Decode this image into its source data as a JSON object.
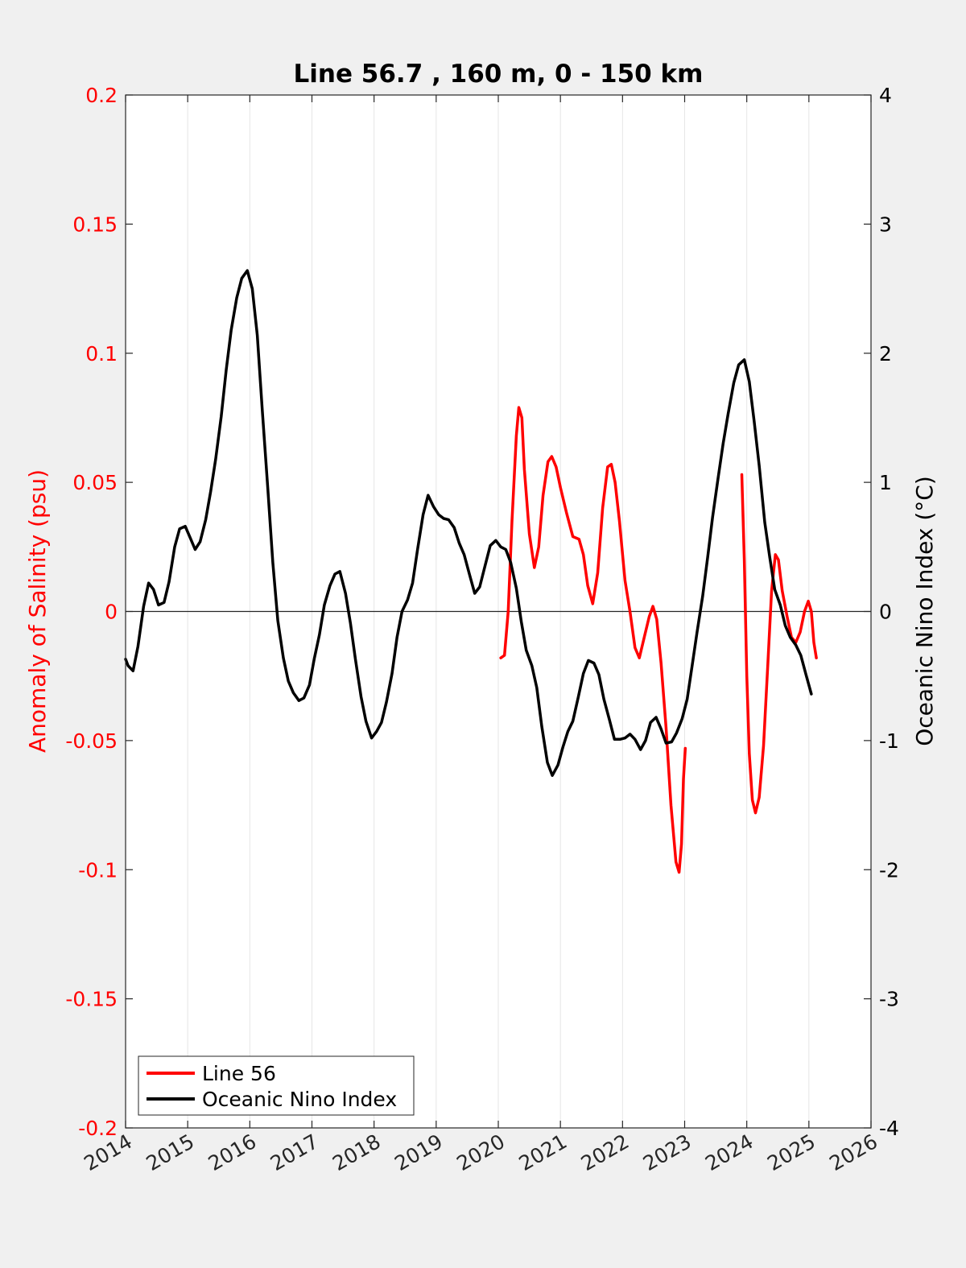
{
  "chart_data": {
    "type": "line",
    "title": "Line 56.7 , 160 m, 0 - 150 km",
    "xlim": [
      2014,
      2026
    ],
    "x_ticks": [
      "2014",
      "2015",
      "2016",
      "2017",
      "2018",
      "2019",
      "2020",
      "2021",
      "2022",
      "2023",
      "2024",
      "2025",
      "2026"
    ],
    "x_tick_values": [
      2014,
      2015,
      2016,
      2017,
      2018,
      2019,
      2020,
      2021,
      2022,
      2023,
      2024,
      2025,
      2026
    ],
    "y_left": {
      "label": "Anomaly of Salinity (psu)",
      "lim": [
        -0.2,
        0.2
      ],
      "ticks": [
        "0.2",
        "0.15",
        "0.1",
        "0.05",
        "0",
        "-0.05",
        "-0.1",
        "-0.15",
        "-0.2"
      ],
      "tick_values": [
        0.2,
        0.15,
        0.1,
        0.05,
        0,
        -0.05,
        -0.1,
        -0.15,
        -0.2
      ],
      "color": "#ff0000"
    },
    "y_right": {
      "label": "Oceanic Nino Index (°C)",
      "lim": [
        -4,
        4
      ],
      "ticks": [
        "4",
        "3",
        "2",
        "1",
        "0",
        "-1",
        "-2",
        "-3",
        "-4"
      ],
      "tick_values": [
        4,
        3,
        2,
        1,
        0,
        -1,
        -2,
        -3,
        -4
      ],
      "color": "#000000"
    },
    "grid": "vertical",
    "legend_position": "bottom-left",
    "zero_line": true,
    "series": [
      {
        "name": "Line 56",
        "axis": "left",
        "color": "#ff0000",
        "segments": [
          [
            [
              2020.04,
              -0.018
            ],
            [
              2020.1,
              -0.017
            ],
            [
              2020.16,
              0.0
            ],
            [
              2020.22,
              0.035
            ],
            [
              2020.29,
              0.068
            ],
            [
              2020.33,
              0.079
            ],
            [
              2020.38,
              0.075
            ],
            [
              2020.42,
              0.055
            ],
            [
              2020.5,
              0.03
            ],
            [
              2020.58,
              0.017
            ],
            [
              2020.65,
              0.025
            ],
            [
              2020.72,
              0.045
            ],
            [
              2020.8,
              0.058
            ],
            [
              2020.86,
              0.06
            ],
            [
              2020.93,
              0.056
            ],
            [
              2021.0,
              0.048
            ],
            [
              2021.1,
              0.038
            ],
            [
              2021.2,
              0.029
            ],
            [
              2021.3,
              0.028
            ],
            [
              2021.37,
              0.022
            ],
            [
              2021.44,
              0.01
            ],
            [
              2021.52,
              0.003
            ],
            [
              2021.6,
              0.015
            ],
            [
              2021.68,
              0.04
            ],
            [
              2021.76,
              0.056
            ],
            [
              2021.82,
              0.057
            ],
            [
              2021.88,
              0.05
            ],
            [
              2021.95,
              0.035
            ],
            [
              2022.04,
              0.012
            ],
            [
              2022.12,
              0.0
            ],
            [
              2022.2,
              -0.014
            ],
            [
              2022.27,
              -0.018
            ],
            [
              2022.35,
              -0.01
            ],
            [
              2022.43,
              -0.002
            ],
            [
              2022.49,
              0.002
            ],
            [
              2022.55,
              -0.003
            ],
            [
              2022.62,
              -0.02
            ],
            [
              2022.7,
              -0.045
            ],
            [
              2022.78,
              -0.075
            ],
            [
              2022.86,
              -0.097
            ],
            [
              2022.91,
              -0.101
            ],
            [
              2022.95,
              -0.09
            ],
            [
              2022.98,
              -0.065
            ],
            [
              2023.01,
              -0.053
            ]
          ],
          [
            [
              2023.92,
              0.053
            ],
            [
              2023.96,
              0.02
            ],
            [
              2024.0,
              -0.025
            ],
            [
              2024.04,
              -0.055
            ],
            [
              2024.09,
              -0.073
            ],
            [
              2024.14,
              -0.078
            ],
            [
              2024.2,
              -0.072
            ],
            [
              2024.27,
              -0.052
            ],
            [
              2024.34,
              -0.02
            ],
            [
              2024.4,
              0.008
            ],
            [
              2024.46,
              0.022
            ],
            [
              2024.51,
              0.02
            ],
            [
              2024.57,
              0.008
            ],
            [
              2024.65,
              -0.002
            ],
            [
              2024.72,
              -0.01
            ],
            [
              2024.79,
              -0.012
            ],
            [
              2024.86,
              -0.008
            ],
            [
              2024.93,
              0.0
            ],
            [
              2024.99,
              0.004
            ],
            [
              2025.04,
              0.0
            ],
            [
              2025.08,
              -0.012
            ],
            [
              2025.12,
              -0.018
            ]
          ]
        ]
      },
      {
        "name": "Oceanic Nino Index",
        "axis": "right",
        "color": "#000000",
        "segments": [
          [
            [
              2014.0,
              -0.37
            ],
            [
              2014.04,
              -0.42
            ],
            [
              2014.12,
              -0.46
            ],
            [
              2014.2,
              -0.27
            ],
            [
              2014.29,
              0.04
            ],
            [
              2014.37,
              0.22
            ],
            [
              2014.45,
              0.17
            ],
            [
              2014.53,
              0.05
            ],
            [
              2014.62,
              0.07
            ],
            [
              2014.7,
              0.23
            ],
            [
              2014.79,
              0.5
            ],
            [
              2014.87,
              0.64
            ],
            [
              2014.96,
              0.66
            ],
            [
              2015.04,
              0.57
            ],
            [
              2015.12,
              0.48
            ],
            [
              2015.2,
              0.54
            ],
            [
              2015.29,
              0.71
            ],
            [
              2015.37,
              0.93
            ],
            [
              2015.45,
              1.18
            ],
            [
              2015.54,
              1.51
            ],
            [
              2015.62,
              1.87
            ],
            [
              2015.7,
              2.18
            ],
            [
              2015.79,
              2.43
            ],
            [
              2015.87,
              2.58
            ],
            [
              2015.96,
              2.64
            ],
            [
              2016.04,
              2.5
            ],
            [
              2016.12,
              2.14
            ],
            [
              2016.2,
              1.56
            ],
            [
              2016.29,
              0.95
            ],
            [
              2016.37,
              0.38
            ],
            [
              2016.45,
              -0.07
            ],
            [
              2016.54,
              -0.36
            ],
            [
              2016.62,
              -0.54
            ],
            [
              2016.7,
              -0.63
            ],
            [
              2016.79,
              -0.69
            ],
            [
              2016.87,
              -0.67
            ],
            [
              2016.96,
              -0.57
            ],
            [
              2017.04,
              -0.36
            ],
            [
              2017.12,
              -0.18
            ],
            [
              2017.2,
              0.05
            ],
            [
              2017.29,
              0.2
            ],
            [
              2017.37,
              0.29
            ],
            [
              2017.45,
              0.31
            ],
            [
              2017.54,
              0.14
            ],
            [
              2017.62,
              -0.09
            ],
            [
              2017.7,
              -0.37
            ],
            [
              2017.79,
              -0.66
            ],
            [
              2017.87,
              -0.85
            ],
            [
              2017.96,
              -0.98
            ],
            [
              2018.04,
              -0.93
            ],
            [
              2018.12,
              -0.86
            ],
            [
              2018.2,
              -0.7
            ],
            [
              2018.29,
              -0.48
            ],
            [
              2018.37,
              -0.2
            ],
            [
              2018.45,
              0.0
            ],
            [
              2018.54,
              0.09
            ],
            [
              2018.62,
              0.22
            ],
            [
              2018.7,
              0.48
            ],
            [
              2018.79,
              0.75
            ],
            [
              2018.87,
              0.9
            ],
            [
              2018.96,
              0.81
            ],
            [
              2019.04,
              0.75
            ],
            [
              2019.12,
              0.72
            ],
            [
              2019.2,
              0.71
            ],
            [
              2019.29,
              0.65
            ],
            [
              2019.37,
              0.53
            ],
            [
              2019.45,
              0.44
            ],
            [
              2019.54,
              0.28
            ],
            [
              2019.62,
              0.14
            ],
            [
              2019.7,
              0.19
            ],
            [
              2019.79,
              0.36
            ],
            [
              2019.87,
              0.51
            ],
            [
              2019.96,
              0.55
            ],
            [
              2020.04,
              0.5
            ],
            [
              2020.12,
              0.48
            ],
            [
              2020.2,
              0.38
            ],
            [
              2020.29,
              0.18
            ],
            [
              2020.37,
              -0.08
            ],
            [
              2020.45,
              -0.3
            ],
            [
              2020.54,
              -0.42
            ],
            [
              2020.62,
              -0.59
            ],
            [
              2020.7,
              -0.89
            ],
            [
              2020.79,
              -1.17
            ],
            [
              2020.87,
              -1.27
            ],
            [
              2020.96,
              -1.19
            ],
            [
              2021.04,
              -1.05
            ],
            [
              2021.12,
              -0.93
            ],
            [
              2021.2,
              -0.85
            ],
            [
              2021.29,
              -0.66
            ],
            [
              2021.37,
              -0.48
            ],
            [
              2021.45,
              -0.38
            ],
            [
              2021.54,
              -0.4
            ],
            [
              2021.62,
              -0.49
            ],
            [
              2021.7,
              -0.68
            ],
            [
              2021.79,
              -0.84
            ],
            [
              2021.87,
              -0.99
            ],
            [
              2021.96,
              -0.99
            ],
            [
              2022.04,
              -0.98
            ],
            [
              2022.12,
              -0.95
            ],
            [
              2022.2,
              -0.99
            ],
            [
              2022.29,
              -1.07
            ],
            [
              2022.37,
              -1.0
            ],
            [
              2022.45,
              -0.86
            ],
            [
              2022.54,
              -0.82
            ],
            [
              2022.62,
              -0.91
            ],
            [
              2022.7,
              -1.02
            ],
            [
              2022.79,
              -1.01
            ],
            [
              2022.87,
              -0.94
            ],
            [
              2022.96,
              -0.83
            ],
            [
              2023.04,
              -0.68
            ],
            [
              2023.12,
              -0.42
            ],
            [
              2023.2,
              -0.16
            ],
            [
              2023.29,
              0.12
            ],
            [
              2023.37,
              0.42
            ],
            [
              2023.45,
              0.73
            ],
            [
              2023.54,
              1.04
            ],
            [
              2023.62,
              1.3
            ],
            [
              2023.7,
              1.53
            ],
            [
              2023.79,
              1.77
            ],
            [
              2023.87,
              1.91
            ],
            [
              2023.96,
              1.95
            ],
            [
              2024.04,
              1.78
            ],
            [
              2024.12,
              1.47
            ],
            [
              2024.2,
              1.13
            ],
            [
              2024.29,
              0.69
            ],
            [
              2024.37,
              0.42
            ],
            [
              2024.45,
              0.17
            ],
            [
              2024.54,
              0.05
            ],
            [
              2024.62,
              -0.11
            ],
            [
              2024.7,
              -0.2
            ],
            [
              2024.79,
              -0.26
            ],
            [
              2024.87,
              -0.34
            ],
            [
              2024.96,
              -0.5
            ],
            [
              2025.04,
              -0.64
            ]
          ]
        ]
      }
    ]
  }
}
